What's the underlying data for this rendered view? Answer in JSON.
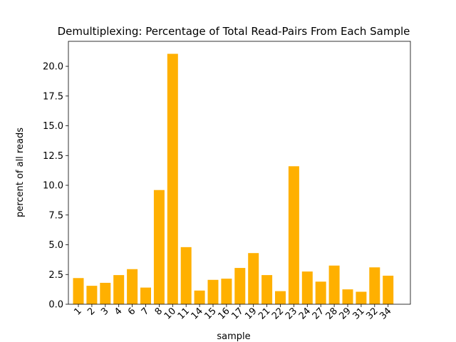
{
  "chart_data": {
    "type": "bar",
    "title": "Demultiplexing: Percentage of Total Read-Pairs From Each Sample",
    "xlabel": "sample",
    "ylabel": "percent of all reads",
    "ylim": [
      0,
      22.1
    ],
    "yticks": [
      "0.0",
      "2.5",
      "5.0",
      "7.5",
      "10.0",
      "12.5",
      "15.0",
      "17.5",
      "20.0"
    ],
    "grid": false,
    "bar_color": "#ffb000",
    "categories": [
      "1",
      "2",
      "3",
      "4",
      "6",
      "7",
      "8",
      "10",
      "11",
      "14",
      "15",
      "16",
      "17",
      "19",
      "21",
      "22",
      "23",
      "24",
      "27",
      "28",
      "29",
      "31",
      "32",
      "34"
    ],
    "values": [
      2.2,
      1.55,
      1.8,
      2.45,
      2.95,
      1.4,
      9.6,
      21.05,
      4.8,
      1.15,
      2.05,
      2.15,
      3.05,
      4.3,
      2.45,
      1.1,
      11.6,
      2.75,
      1.9,
      3.25,
      1.25,
      1.05,
      3.1,
      2.4
    ]
  }
}
